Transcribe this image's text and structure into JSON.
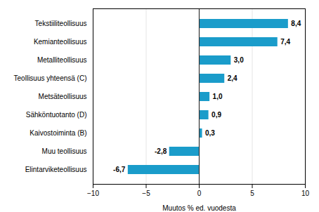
{
  "chart_data": {
    "type": "bar",
    "orientation": "horizontal",
    "categories": [
      "Elintarviketeollisuus",
      "Muu teollisuus",
      "Kaivostoiminta (B)",
      "Sähköntuotanto (D)",
      "Metsäteollisuus",
      "Teollisuus yhteensä (C)",
      "Metalliteollisuus",
      "Kemianteollisuus",
      "Tekstiiliteollisuus"
    ],
    "values": [
      -6.7,
      -2.8,
      0.3,
      0.9,
      1.0,
      2.4,
      3.0,
      7.4,
      8.4
    ],
    "value_labels": [
      "-6,7",
      "-2,8",
      "0,3",
      "0,9",
      "1,0",
      "2,4",
      "3,0",
      "7,4",
      "8,4"
    ],
    "color": "#1a9cca",
    "xlabel": "Muutos % ed. vuodesta",
    "xlim": [
      -10,
      10
    ],
    "xticks": [
      -10,
      -5,
      0,
      5,
      10
    ],
    "grid": true,
    "data_labels": true
  }
}
